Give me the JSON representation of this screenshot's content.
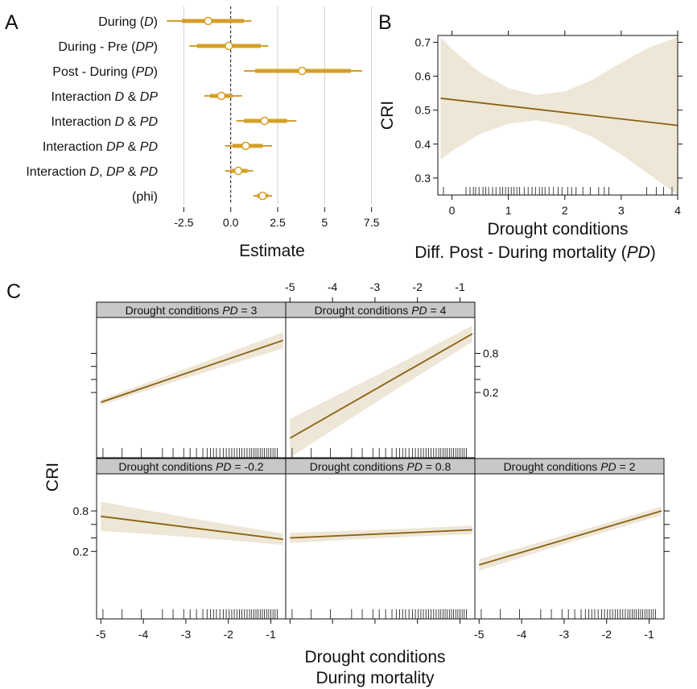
{
  "panel_letters": {
    "a": "A",
    "b": "B",
    "c": "C"
  },
  "colors": {
    "accent": "#d4a02a",
    "line": "#8a6010",
    "band": "#eee6d6",
    "strip": "#c8c8c8",
    "ink": "#111111",
    "grid": "#cfcfcf"
  },
  "chart_data": [
    {
      "panel": "A",
      "type": "scatter",
      "orientation": "horizontal-interval",
      "xlabel": "Estimate",
      "xlim": [
        -3.8,
        8.2
      ],
      "xticks": [
        -2.5,
        0.0,
        2.5,
        5.0,
        7.5
      ],
      "xtick_labels": [
        "-2.5",
        "0.0",
        "2.5",
        "5",
        "7.5"
      ],
      "grid": "vertical",
      "reference_line": 0,
      "terms": [
        {
          "pre": "During (",
          "em": "D",
          "post": ")",
          "mid": "",
          "em2": "",
          "post2": "",
          "mid2": "",
          "em3": "",
          "post3": "",
          "estimate": -1.2,
          "inner": [
            -2.6,
            0.7
          ],
          "outer": [
            -3.4,
            1.1
          ]
        },
        {
          "pre": "During - Pre (",
          "em": "DP",
          "post": ")",
          "mid": "",
          "em2": "",
          "post2": "",
          "mid2": "",
          "em3": "",
          "post3": "",
          "estimate": -0.1,
          "inner": [
            -1.8,
            1.6
          ],
          "outer": [
            -2.2,
            2.0
          ]
        },
        {
          "pre": "Post - During (",
          "em": "PD",
          "post": ")",
          "mid": "",
          "em2": "",
          "post2": "",
          "mid2": "",
          "em3": "",
          "post3": "",
          "estimate": 3.8,
          "inner": [
            1.3,
            6.4
          ],
          "outer": [
            0.7,
            7.0
          ]
        },
        {
          "pre": "Interaction ",
          "em": "D",
          "post": "",
          "mid": " & ",
          "em2": "DP",
          "post2": "",
          "mid2": "",
          "em3": "",
          "post3": "",
          "estimate": -0.5,
          "inner": [
            -1.1,
            0.1
          ],
          "outer": [
            -1.4,
            0.6
          ]
        },
        {
          "pre": "Interaction ",
          "em": "D",
          "post": "",
          "mid": " & ",
          "em2": "PD",
          "post2": "",
          "mid2": "",
          "em3": "",
          "post3": "",
          "estimate": 1.8,
          "inner": [
            0.7,
            3.0
          ],
          "outer": [
            0.3,
            3.5
          ]
        },
        {
          "pre": "Interaction ",
          "em": "DP",
          "post": "",
          "mid": " & ",
          "em2": "PD",
          "post2": "",
          "mid2": "",
          "em3": "",
          "post3": "",
          "estimate": 0.8,
          "inner": [
            0.1,
            1.7
          ],
          "outer": [
            -0.3,
            2.2
          ]
        },
        {
          "pre": "Interaction ",
          "em": "D",
          "post": "",
          "mid": ", ",
          "em2": "DP",
          "post2": "",
          "mid2": " & ",
          "em3": "PD",
          "post3": "",
          "estimate": 0.4,
          "inner": [
            0.0,
            0.9
          ],
          "outer": [
            -0.3,
            1.2
          ]
        },
        {
          "pre": "(phi)",
          "em": "",
          "post": "",
          "mid": "",
          "em2": "",
          "post2": "",
          "mid2": "",
          "em3": "",
          "post3": "",
          "estimate": 1.7,
          "inner": [
            1.4,
            2.0
          ],
          "outer": [
            1.2,
            2.2
          ]
        }
      ]
    },
    {
      "panel": "B",
      "type": "line",
      "ylabel": "CRI",
      "xlabel_line1": "Drought conditions",
      "xlabel_line2_pre": "Diff. Post - During mortality (",
      "xlabel_line2_em": "PD",
      "xlabel_line2_post": ")",
      "xlim": [
        -0.25,
        4.0
      ],
      "ylim": [
        0.25,
        0.72
      ],
      "xticks": [
        0,
        1,
        2,
        3,
        4
      ],
      "yticks": [
        0.3,
        0.4,
        0.5,
        0.6,
        0.7
      ],
      "ytick_labels": [
        "0.3",
        "0.4",
        "0.5",
        "0.6",
        "0.7"
      ],
      "fit": {
        "x": [
          -0.2,
          4.0
        ],
        "y": [
          0.535,
          0.455
        ]
      },
      "band": {
        "x": [
          -0.2,
          0.0,
          0.5,
          1.0,
          1.5,
          2.0,
          2.5,
          3.0,
          3.5,
          4.0
        ],
        "upper": [
          0.715,
          0.68,
          0.61,
          0.565,
          0.545,
          0.555,
          0.59,
          0.64,
          0.685,
          0.715
        ],
        "lower": [
          0.355,
          0.38,
          0.43,
          0.46,
          0.47,
          0.455,
          0.42,
          0.37,
          0.31,
          0.25
        ]
      },
      "rug": [
        -0.15,
        0.25,
        0.32,
        0.38,
        0.42,
        0.48,
        0.55,
        0.6,
        0.65,
        0.72,
        0.78,
        0.85,
        0.9,
        0.95,
        1.0,
        1.05,
        1.1,
        1.15,
        1.2,
        1.28,
        1.35,
        1.42,
        1.48,
        1.55,
        1.6,
        1.65,
        1.72,
        1.8,
        1.88,
        1.95,
        2.05,
        2.12,
        2.2,
        2.32,
        2.45,
        2.6,
        2.7,
        2.78,
        3.45,
        3.62,
        3.75,
        3.9
      ]
    },
    {
      "panel": "C",
      "type": "line",
      "layout": "facets-2x3",
      "ylabel": "CRI",
      "xlabel_line1": "Drought conditions",
      "xlabel_line2": "During mortality",
      "strip_prefix": "Drought conditions ",
      "strip_var": "PD",
      "strip_eq": " = ",
      "xlim": [
        -5.1,
        -0.65
      ],
      "ylim": [
        -0.8,
        1.35
      ],
      "xticks": [
        -5,
        -4,
        -3,
        -2,
        -1
      ],
      "yticks_labeled": [
        0.2,
        0.8
      ],
      "ytick_labels": [
        "0.2",
        "0.8"
      ],
      "yticks_minor": [
        0.4,
        0.6
      ],
      "rug": [
        -4.95,
        -4.5,
        -4.05,
        -3.55,
        -3.3,
        -3.05,
        -2.9,
        -2.75,
        -2.6,
        -2.5,
        -2.42,
        -2.35,
        -2.28,
        -2.2,
        -2.12,
        -2.05,
        -1.98,
        -1.92,
        -1.86,
        -1.8,
        -1.74,
        -1.68,
        -1.62,
        -1.56,
        -1.5,
        -1.45,
        -1.4,
        -1.35,
        -1.3,
        -1.25,
        -1.2,
        -1.15,
        -1.1,
        -1.05,
        -1.0,
        -0.95,
        -0.9,
        -0.85
      ],
      "facets": [
        {
          "pd": "3",
          "row": 0,
          "col": 0,
          "fit": [
            0.05,
            1.0
          ],
          "half_width": [
            0.03,
            0.12
          ]
        },
        {
          "pd": "4",
          "row": 0,
          "col": 1,
          "fit": [
            -0.5,
            1.1
          ],
          "half_width": [
            0.28,
            0.12
          ]
        },
        {
          "pd": "-0.2",
          "row": 1,
          "col": 0,
          "fit": [
            0.72,
            0.38
          ],
          "half_width": [
            0.2,
            0.08
          ]
        },
        {
          "pd": "0.8",
          "row": 1,
          "col": 1,
          "fit": [
            0.4,
            0.52
          ],
          "half_width": [
            0.06,
            0.06
          ]
        },
        {
          "pd": "2",
          "row": 1,
          "col": 2,
          "fit": [
            0.0,
            0.8
          ],
          "half_width": [
            0.07,
            0.06
          ]
        }
      ]
    }
  ]
}
